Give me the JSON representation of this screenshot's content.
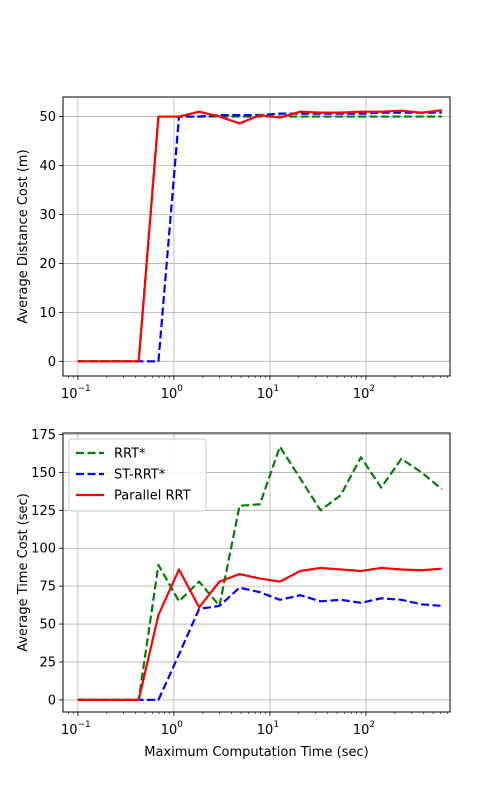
{
  "colors": {
    "RRT*": "#008000",
    "ST-RRT*": "#0000ff",
    "Parallel RRT": "#ff0000",
    "grid": "#b0b0b0"
  },
  "chart_data": [
    {
      "type": "line",
      "x_scale": "log",
      "xlim": [
        0.07,
        750
      ],
      "ylim": [
        -3,
        54
      ],
      "xlabel": "",
      "ylabel": "Average Distance Cost (m)",
      "yticks": [
        0,
        10,
        20,
        30,
        40,
        50
      ],
      "xticks": [
        {
          "value": 0.1,
          "label": "10",
          "exp": "−1"
        },
        {
          "value": 1,
          "label": "10",
          "exp": "0"
        },
        {
          "value": 10,
          "label": "10",
          "exp": "1"
        },
        {
          "value": 100,
          "label": "10",
          "exp": "2"
        }
      ],
      "grid": true,
      "legend": null,
      "series": [
        {
          "key": "RRT*",
          "style": "dashed",
          "x": [
            0.1,
            0.43,
            0.69,
            1.13,
            1.83,
            2.98,
            4.83,
            7.85,
            12.7,
            20.7,
            33.6,
            54.6,
            88.6,
            144,
            234,
            379,
            616
          ],
          "y": [
            0,
            0,
            50,
            50,
            50,
            50,
            50,
            50,
            50,
            50,
            50,
            50,
            50,
            50,
            50,
            50,
            50
          ]
        },
        {
          "key": "ST-RRT*",
          "style": "dashed",
          "x": [
            0.1,
            0.43,
            0.69,
            1.13,
            1.83,
            2.98,
            4.83,
            7.85,
            12.7,
            20.7,
            33.6,
            54.6,
            88.6,
            144,
            234,
            379,
            616
          ],
          "y": [
            0,
            0,
            0,
            50,
            50,
            50.3,
            50.3,
            50.3,
            50.6,
            50.6,
            50.6,
            50.6,
            50.6,
            50.8,
            50.8,
            50.8,
            50.8
          ]
        },
        {
          "key": "Parallel RRT",
          "style": "solid",
          "x": [
            0.1,
            0.43,
            0.69,
            1.13,
            1.83,
            2.98,
            4.83,
            7.85,
            12.7,
            20.7,
            33.6,
            54.6,
            88.6,
            144,
            234,
            379,
            616
          ],
          "y": [
            0,
            0,
            50,
            50,
            51,
            50,
            48.6,
            50.3,
            49.8,
            51,
            50.8,
            50.8,
            51,
            51,
            51.2,
            50.8,
            51.3
          ]
        }
      ]
    },
    {
      "type": "line",
      "x_scale": "log",
      "xlim": [
        0.07,
        750
      ],
      "ylim": [
        -8,
        176
      ],
      "xlabel": "Maximum Computation Time (sec)",
      "ylabel": "Average Time Cost (sec)",
      "yticks": [
        0,
        25,
        50,
        75,
        100,
        125,
        150,
        175
      ],
      "xticks": [
        {
          "value": 0.1,
          "label": "10",
          "exp": "−1"
        },
        {
          "value": 1,
          "label": "10",
          "exp": "0"
        },
        {
          "value": 10,
          "label": "10",
          "exp": "1"
        },
        {
          "value": 100,
          "label": "10",
          "exp": "2"
        }
      ],
      "grid": true,
      "legend": "top-left",
      "series": [
        {
          "key": "RRT*",
          "name": "RRT*",
          "style": "dashed",
          "x": [
            0.1,
            0.43,
            0.69,
            1.13,
            1.83,
            2.98,
            4.83,
            7.85,
            12.7,
            20.7,
            33.6,
            54.6,
            88.6,
            144,
            234,
            379,
            616
          ],
          "y": [
            0,
            0,
            89,
            65,
            78,
            62,
            128,
            129,
            167,
            146,
            125,
            135,
            160,
            140,
            159,
            150,
            139
          ]
        },
        {
          "key": "ST-RRT*",
          "name": "ST-RRT*",
          "style": "dashed",
          "x": [
            0.1,
            0.43,
            0.69,
            1.13,
            1.83,
            2.98,
            4.83,
            7.85,
            12.7,
            20.7,
            33.6,
            54.6,
            88.6,
            144,
            234,
            379,
            616
          ],
          "y": [
            0,
            0,
            0,
            30,
            60,
            62,
            74,
            71,
            66,
            69,
            65,
            66,
            64,
            67,
            66,
            63,
            62
          ]
        },
        {
          "key": "Parallel RRT",
          "name": "Parallel RRT",
          "style": "solid",
          "x": [
            0.1,
            0.43,
            0.69,
            1.13,
            1.83,
            2.98,
            4.83,
            7.85,
            12.7,
            20.7,
            33.6,
            54.6,
            88.6,
            144,
            234,
            379,
            616
          ],
          "y": [
            0,
            0,
            56,
            86,
            61,
            78,
            83,
            80,
            78,
            85,
            87,
            86,
            85,
            87,
            86,
            85.5,
            86.5
          ]
        }
      ]
    }
  ]
}
